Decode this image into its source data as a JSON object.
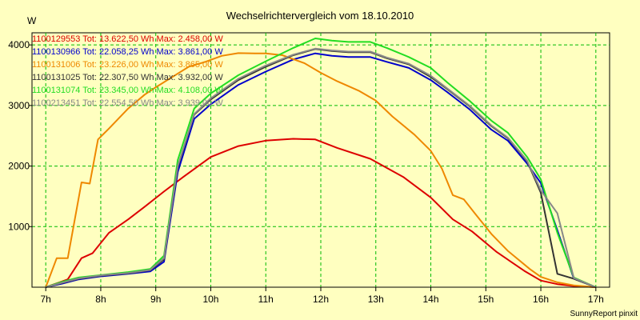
{
  "chart_data": {
    "type": "line",
    "title": "Wechselrichtervergleich vom 18.10.2010",
    "ylabel": "W",
    "xlabel": "",
    "xlim": [
      6.75,
      17.25
    ],
    "ylim": [
      0,
      4200
    ],
    "grid": true,
    "x_ticks": [
      7,
      8,
      9,
      10,
      11,
      12,
      13,
      14,
      15,
      16,
      17
    ],
    "x_tick_labels": [
      "7h",
      "8h",
      "9h",
      "10h",
      "11h",
      "12h",
      "13h",
      "14h",
      "15h",
      "16h",
      "17h"
    ],
    "y_ticks": [
      1000,
      2000,
      3000,
      4000
    ],
    "y_tick_labels": [
      "1000",
      "2000",
      "3000",
      "4000"
    ],
    "legend_position": "top-left",
    "credit": "SunnyReport pinxit",
    "series": [
      {
        "name": "1100129553",
        "label": "1100129553 Tot: 13.622,50 Wh Max: 2.458,00 W",
        "color": "#dd0000",
        "x": [
          7.0,
          7.25,
          7.4,
          7.65,
          7.85,
          8.15,
          8.5,
          8.8,
          9.15,
          9.5,
          10.0,
          10.5,
          11.0,
          11.5,
          11.9,
          12.3,
          12.9,
          13.5,
          14.0,
          14.4,
          14.75,
          15.2,
          15.7,
          16.0,
          16.3,
          16.6,
          17.0
        ],
        "values": [
          0,
          80,
          130,
          480,
          560,
          900,
          1120,
          1330,
          1580,
          1820,
          2150,
          2330,
          2420,
          2450,
          2440,
          2300,
          2120,
          1820,
          1480,
          1120,
          920,
          580,
          270,
          110,
          50,
          20,
          0
        ]
      },
      {
        "name": "1100130966",
        "label": "1100130966 Tot: 22.058,25 Wh Max: 3.861,00 W",
        "color": "#0000cc",
        "x": [
          7.0,
          7.3,
          7.6,
          8.0,
          8.5,
          8.9,
          9.15,
          9.4,
          9.7,
          10.0,
          10.5,
          11.0,
          11.5,
          11.9,
          12.2,
          12.5,
          12.9,
          13.2,
          13.6,
          14.0,
          14.3,
          14.7,
          15.1,
          15.4,
          15.75,
          16.0,
          16.3,
          16.6,
          17.0
        ],
        "values": [
          0,
          60,
          130,
          180,
          220,
          260,
          420,
          1900,
          2780,
          3020,
          3340,
          3560,
          3760,
          3861,
          3820,
          3800,
          3800,
          3720,
          3620,
          3420,
          3220,
          2940,
          2600,
          2420,
          2040,
          1720,
          940,
          140,
          0
        ]
      },
      {
        "name": "1100131006",
        "label": "1100131006 Tot: 23.226,00 Wh Max: 3.865,00 W",
        "color": "#ee8800",
        "x": [
          7.0,
          7.2,
          7.4,
          7.65,
          7.8,
          7.95,
          8.15,
          8.5,
          8.8,
          9.0,
          9.3,
          9.6,
          9.9,
          10.2,
          10.5,
          10.8,
          11.0,
          11.3,
          11.7,
          12.0,
          12.3,
          12.7,
          13.0,
          13.3,
          13.7,
          14.0,
          14.2,
          14.4,
          14.6,
          14.8,
          15.1,
          15.4,
          15.8,
          16.0,
          16.3,
          16.6,
          17.0
        ],
        "values": [
          0,
          480,
          480,
          1730,
          1710,
          2440,
          2620,
          2950,
          3180,
          3300,
          3470,
          3640,
          3720,
          3820,
          3865,
          3860,
          3860,
          3830,
          3700,
          3540,
          3400,
          3240,
          3080,
          2820,
          2520,
          2250,
          1960,
          1520,
          1450,
          1220,
          880,
          600,
          300,
          170,
          80,
          30,
          0
        ]
      },
      {
        "name": "1100131025",
        "label": "1100131025 Tot: 22.307,50 Wh Max: 3.932,00 W",
        "color": "#333333",
        "x": [
          7.0,
          7.3,
          7.6,
          8.0,
          8.5,
          8.9,
          9.15,
          9.4,
          9.7,
          10.0,
          10.5,
          11.0,
          11.5,
          11.9,
          12.2,
          12.5,
          12.9,
          13.2,
          13.6,
          14.0,
          14.3,
          14.7,
          15.1,
          15.4,
          15.75,
          16.0,
          16.3,
          16.6,
          17.0
        ],
        "values": [
          0,
          70,
          140,
          190,
          230,
          280,
          460,
          1980,
          2850,
          3100,
          3420,
          3640,
          3830,
          3932,
          3900,
          3880,
          3880,
          3780,
          3680,
          3470,
          3270,
          2990,
          2660,
          2460,
          2080,
          1560,
          220,
          140,
          0
        ]
      },
      {
        "name": "1100131074",
        "label": "1100131074 Tot: 23.345,00 Wh Max: 4.108,00 W",
        "color": "#22dd22",
        "x": [
          7.0,
          7.3,
          7.6,
          8.0,
          8.5,
          8.9,
          9.15,
          9.4,
          9.7,
          10.0,
          10.5,
          11.0,
          11.5,
          11.9,
          12.2,
          12.5,
          12.9,
          13.2,
          13.6,
          14.0,
          14.3,
          14.7,
          15.1,
          15.4,
          15.75,
          16.0,
          16.3,
          16.6,
          17.0
        ],
        "values": [
          0,
          90,
          160,
          200,
          250,
          300,
          520,
          2100,
          2950,
          3200,
          3500,
          3730,
          3950,
          4108,
          4070,
          4050,
          4050,
          3950,
          3800,
          3620,
          3380,
          3080,
          2750,
          2550,
          2150,
          1780,
          900,
          160,
          0
        ]
      },
      {
        "name": "1100213451",
        "label": "1100213451 Tot: 22.554,50 Wh Max: 3.939,00 W",
        "color": "#888888",
        "x": [
          7.0,
          7.3,
          7.6,
          8.0,
          8.5,
          8.9,
          9.15,
          9.4,
          9.7,
          10.0,
          10.5,
          11.0,
          11.5,
          11.9,
          12.2,
          12.5,
          12.9,
          13.2,
          13.6,
          14.0,
          14.3,
          14.7,
          15.1,
          15.4,
          15.75,
          16.0,
          16.3,
          16.6,
          17.0
        ],
        "values": [
          0,
          75,
          145,
          195,
          235,
          285,
          480,
          2000,
          2860,
          3120,
          3440,
          3660,
          3840,
          3939,
          3910,
          3890,
          3890,
          3790,
          3690,
          3490,
          3280,
          3000,
          2670,
          2470,
          2090,
          1600,
          1220,
          150,
          0
        ]
      }
    ]
  }
}
